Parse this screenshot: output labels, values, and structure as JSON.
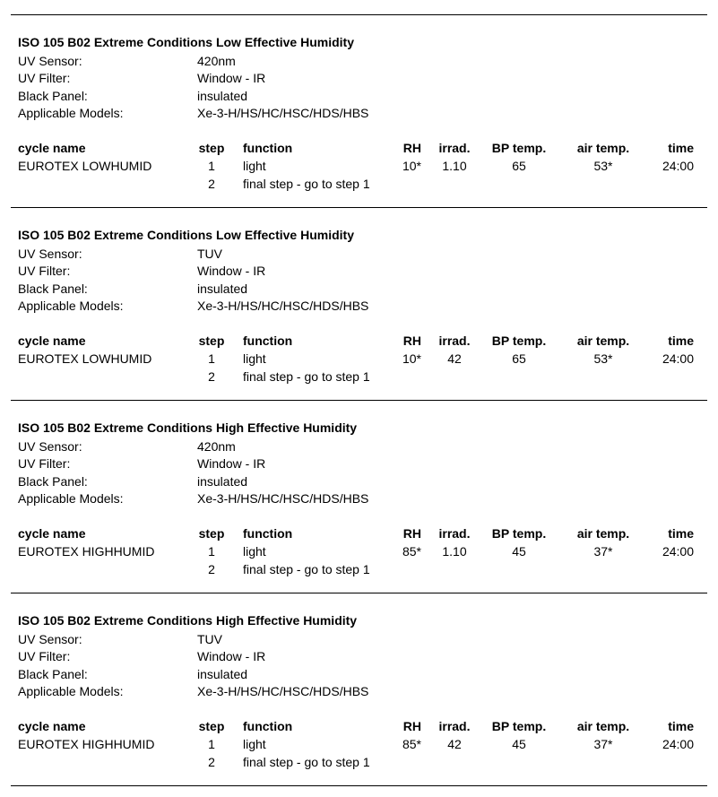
{
  "labels": {
    "uv_sensor": "UV Sensor:",
    "uv_filter": "UV Filter:",
    "black_panel": "Black Panel:",
    "applicable_models": "Applicable Models:"
  },
  "columns": [
    "cycle name",
    "step",
    "function",
    "RH",
    "irrad.",
    "BP temp.",
    "air temp.",
    "time"
  ],
  "sections": [
    {
      "title": "ISO 105 B02 Extreme Conditions Low Effective Humidity",
      "uv_sensor": "420nm",
      "uv_filter": "Window - IR",
      "black_panel": "insulated",
      "applicable_models": "Xe-3-H/HS/HC/HSC/HDS/HBS",
      "rows": [
        {
          "cycle_name": "EUROTEX LOWHUMID",
          "step": "1",
          "function": "light",
          "rh": "10*",
          "irrad": "1.10",
          "bp_temp": "65",
          "air_temp": "53*",
          "time": "24:00"
        },
        {
          "cycle_name": "",
          "step": "2",
          "function": "final step - go to step 1",
          "rh": "",
          "irrad": "",
          "bp_temp": "",
          "air_temp": "",
          "time": ""
        }
      ]
    },
    {
      "title": "ISO 105 B02 Extreme Conditions Low Effective Humidity",
      "uv_sensor": "TUV",
      "uv_filter": "Window - IR",
      "black_panel": "insulated",
      "applicable_models": "Xe-3-H/HS/HC/HSC/HDS/HBS",
      "rows": [
        {
          "cycle_name": "EUROTEX LOWHUMID",
          "step": "1",
          "function": "light",
          "rh": "10*",
          "irrad": "42",
          "bp_temp": "65",
          "air_temp": "53*",
          "time": "24:00"
        },
        {
          "cycle_name": "",
          "step": "2",
          "function": "final step - go to step 1",
          "rh": "",
          "irrad": "",
          "bp_temp": "",
          "air_temp": "",
          "time": ""
        }
      ]
    },
    {
      "title": "ISO 105 B02 Extreme Conditions High Effective Humidity",
      "uv_sensor": "420nm",
      "uv_filter": "Window - IR",
      "black_panel": "insulated",
      "applicable_models": "Xe-3-H/HS/HC/HSC/HDS/HBS",
      "rows": [
        {
          "cycle_name": "EUROTEX HIGHHUMID",
          "step": "1",
          "function": "light",
          "rh": "85*",
          "irrad": "1.10",
          "bp_temp": "45",
          "air_temp": "37*",
          "time": "24:00"
        },
        {
          "cycle_name": "",
          "step": "2",
          "function": "final step - go to step 1",
          "rh": "",
          "irrad": "",
          "bp_temp": "",
          "air_temp": "",
          "time": ""
        }
      ]
    },
    {
      "title": "ISO 105 B02 Extreme Conditions High Effective Humidity",
      "uv_sensor": "TUV",
      "uv_filter": "Window - IR",
      "black_panel": "insulated",
      "applicable_models": "Xe-3-H/HS/HC/HSC/HDS/HBS",
      "rows": [
        {
          "cycle_name": "EUROTEX HIGHHUMID",
          "step": "1",
          "function": "light",
          "rh": "85*",
          "irrad": "42",
          "bp_temp": "45",
          "air_temp": "37*",
          "time": "24:00"
        },
        {
          "cycle_name": "",
          "step": "2",
          "function": "final step - go to step 1",
          "rh": "",
          "irrad": "",
          "bp_temp": "",
          "air_temp": "",
          "time": ""
        }
      ]
    }
  ]
}
